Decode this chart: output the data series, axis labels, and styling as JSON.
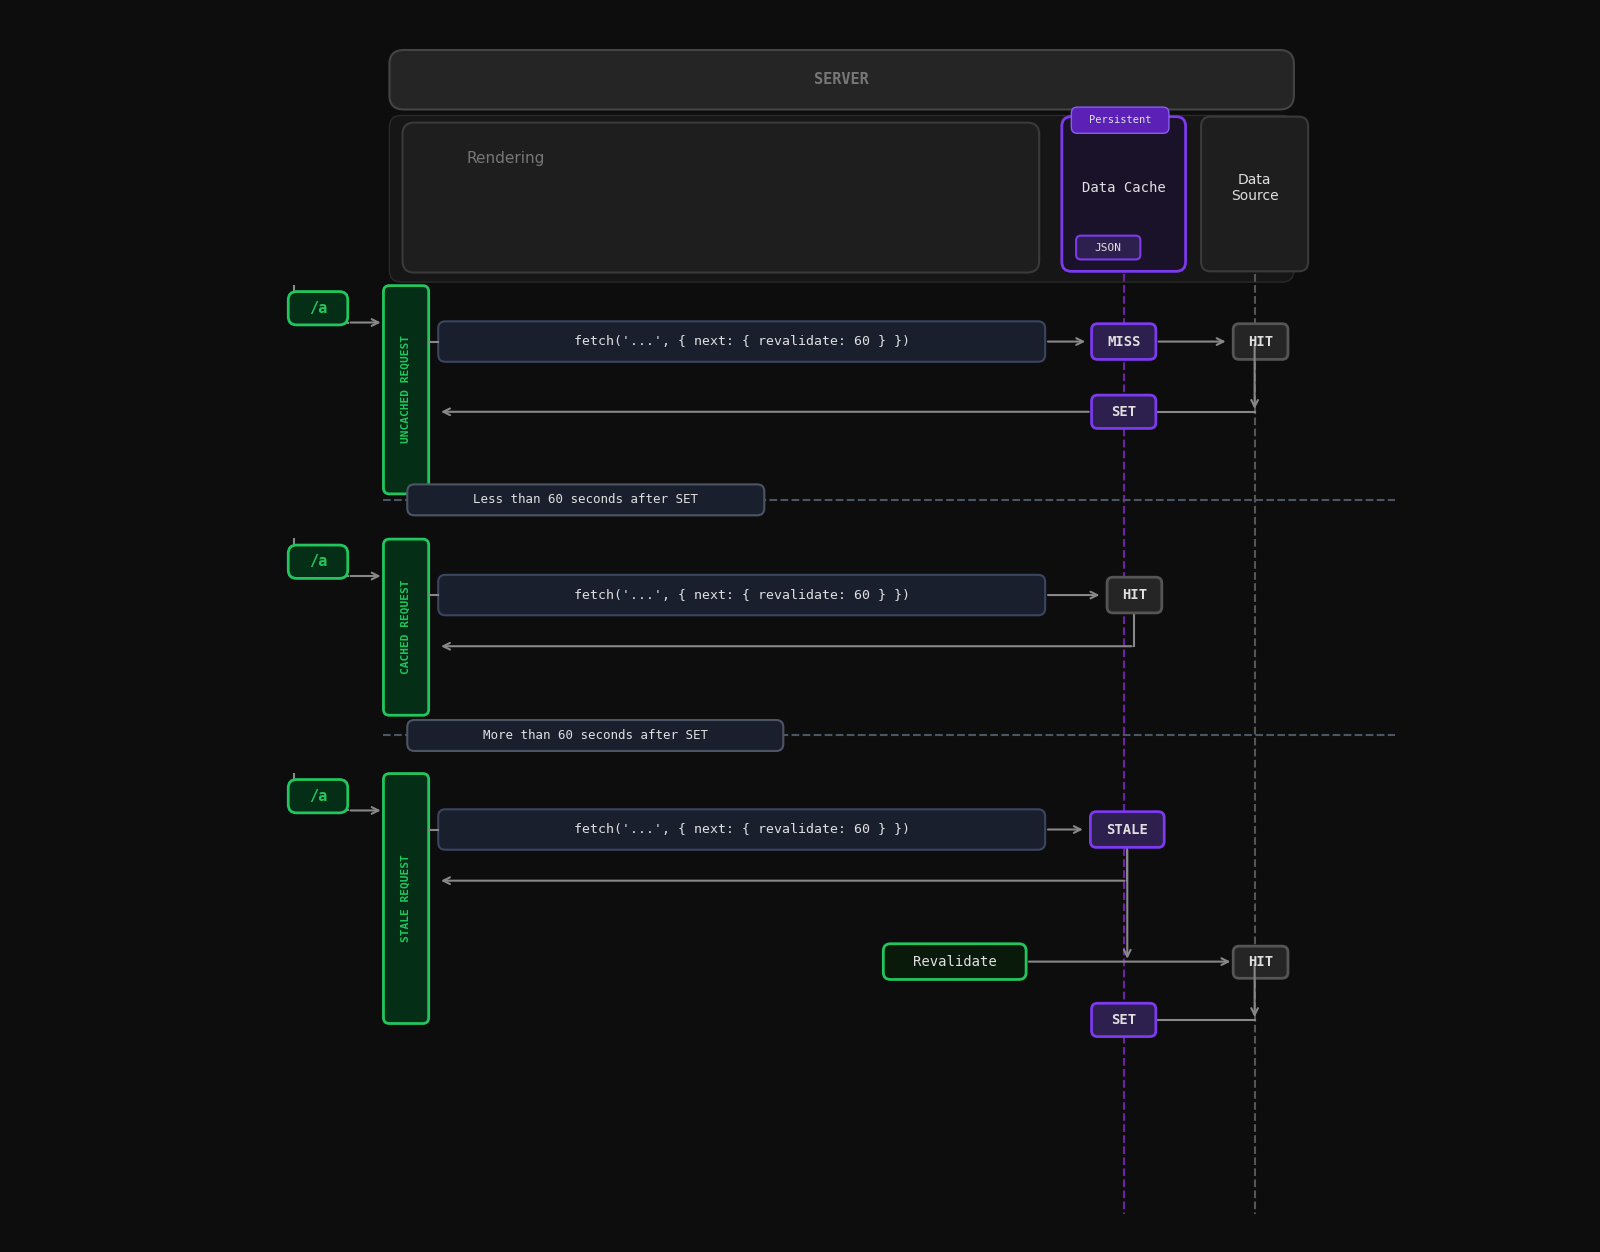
{
  "bg_color": "#0d0d0d",
  "server_box_color": "#252525",
  "server_box_border": "#444444",
  "inner_server_color": "#1a1a1a",
  "inner_server_border": "#333333",
  "rendering_box_color": "#1e1e1e",
  "rendering_box_border": "#3a3a3a",
  "dc_box_color": "#1a1228",
  "dc_box_border": "#7c3aed",
  "ds_box_color": "#1e1e1e",
  "ds_box_border": "#3a3a3a",
  "persistent_tag_color": "#5b21b6",
  "persistent_tag_border": "#8b5cf6",
  "json_tag_color": "#2d1f4e",
  "json_tag_border": "#7c3aed",
  "fetch_box_color": "#1a1f2e",
  "fetch_box_border": "#3a4560",
  "green_fill": "#052e16",
  "green_border": "#22c55e",
  "green_text": "#22c55e",
  "purple_fill": "#2d1f4e",
  "purple_border": "#7c3aed",
  "hit_fill": "#252525",
  "hit_border": "#555555",
  "reval_fill": "#0a1a0a",
  "reval_border": "#22c55e",
  "sep_box_color": "#1a1f2e",
  "sep_box_border": "#4b5563",
  "arrow_color": "#888888",
  "dashed_purple": "#6b21a8",
  "dashed_gray": "#555555",
  "sep_dash_color": "#4b5563",
  "white_text": "#e0e0e0",
  "gray_text": "#777777",
  "server_label": "SERVER",
  "rendering_label": "Rendering",
  "data_cache_label": "Data Cache",
  "data_source_label": "Data\nSource",
  "persistent_label": "Persistent",
  "json_label": "JSON",
  "fetch_text": "fetch('...', { next: { revalidate: 60 } })",
  "route_label": "/a",
  "uncached_label": "UNCACHED REQUEST",
  "cached_label": "CACHED REQUEST",
  "stale_label": "STALE REQUEST",
  "less_60_label": "Less than 60 seconds after SET",
  "more_60_label": "More than 60 seconds after SET",
  "revalidate_text": "Revalidate",
  "miss_text": "MISS",
  "hit_text": "HIT",
  "set_text": "SET",
  "stale_text": "STALE"
}
